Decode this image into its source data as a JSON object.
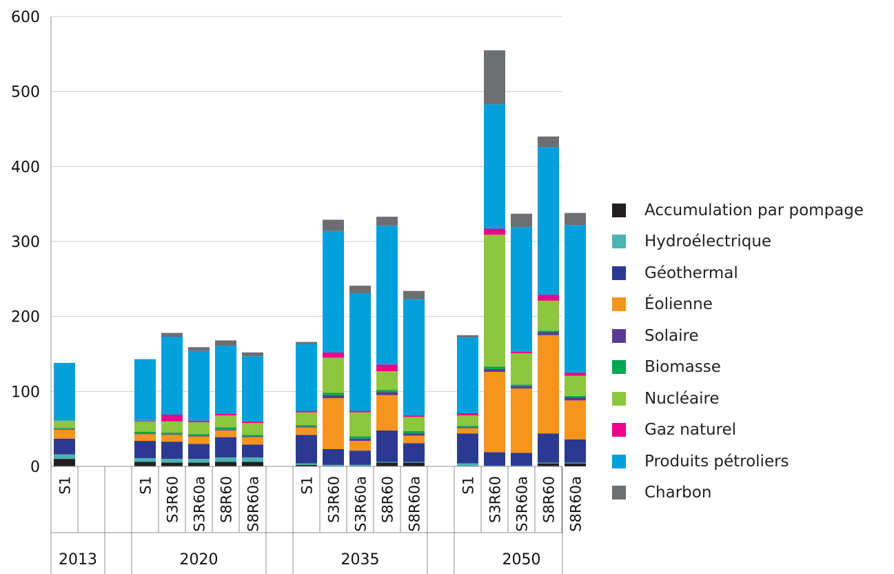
{
  "chart_data": {
    "type": "bar",
    "stacked": true,
    "ylim": [
      0,
      600
    ],
    "yticks": [
      0,
      100,
      200,
      300,
      400,
      500,
      600
    ],
    "grid": true,
    "legend_position": "right",
    "groups": [
      {
        "label": "2013",
        "categories": [
          "S1"
        ]
      },
      {
        "label": "2020",
        "categories": [
          "S1",
          "S3R60",
          "S3R60a",
          "S8R60",
          "S8R60a"
        ]
      },
      {
        "label": "2035",
        "categories": [
          "S1",
          "S3R60",
          "S3R60a",
          "S8R60",
          "S8R60a"
        ]
      },
      {
        "label": "2050",
        "categories": [
          "S1",
          "S3R60",
          "S3R60a",
          "S8R60",
          "S8R60a"
        ]
      }
    ],
    "series": [
      {
        "name": "Accumulation par pompage",
        "color": "#231f20",
        "values": [
          10,
          6,
          5,
          5,
          6,
          6,
          2,
          0,
          0,
          5,
          5,
          0,
          0,
          0,
          4,
          4
        ]
      },
      {
        "name": "Hydroélectrique",
        "color": "#4db3b3",
        "values": [
          6,
          5,
          5,
          5,
          6,
          6,
          2,
          2,
          2,
          1,
          1,
          4,
          1,
          1,
          1,
          1
        ]
      },
      {
        "name": "Géothermal",
        "color": "#2b3990",
        "values": [
          21,
          23,
          23,
          20,
          27,
          17,
          38,
          21,
          19,
          42,
          25,
          40,
          18,
          17,
          39,
          31
        ]
      },
      {
        "name": "Éolienne",
        "color": "#f7941d",
        "values": [
          12,
          9,
          9,
          10,
          9,
          10,
          10,
          68,
          13,
          47,
          10,
          7,
          107,
          86,
          131,
          52
        ]
      },
      {
        "name": "Solaire",
        "color": "#5b3a94",
        "values": [
          1,
          1,
          1,
          1,
          1,
          1,
          1,
          4,
          3,
          4,
          3,
          1,
          4,
          3,
          4,
          4
        ]
      },
      {
        "name": "Biomasse",
        "color": "#00a651",
        "values": [
          1,
          2,
          2,
          2,
          3,
          2,
          2,
          3,
          3,
          3,
          3,
          2,
          3,
          2,
          2,
          2
        ]
      },
      {
        "name": "Nucléaire",
        "color": "#8dc63f",
        "values": [
          10,
          14,
          15,
          16,
          16,
          16,
          17,
          47,
          32,
          25,
          19,
          14,
          176,
          42,
          40,
          27
        ]
      },
      {
        "name": "Gaz naturel",
        "color": "#ec008c",
        "values": [
          0,
          1,
          9,
          2,
          2,
          2,
          2,
          7,
          2,
          9,
          2,
          3,
          8,
          2,
          8,
          4
        ]
      },
      {
        "name": "Produits pétroliers",
        "color": "#00a0dc",
        "values": [
          77,
          82,
          104,
          93,
          91,
          87,
          89,
          162,
          157,
          185,
          155,
          101,
          166,
          166,
          197,
          197
        ]
      },
      {
        "name": "Charbon",
        "color": "#6d6e71",
        "values": [
          0,
          0,
          5,
          5,
          7,
          5,
          3,
          15,
          10,
          12,
          11,
          3,
          72,
          18,
          14,
          16
        ]
      }
    ]
  }
}
